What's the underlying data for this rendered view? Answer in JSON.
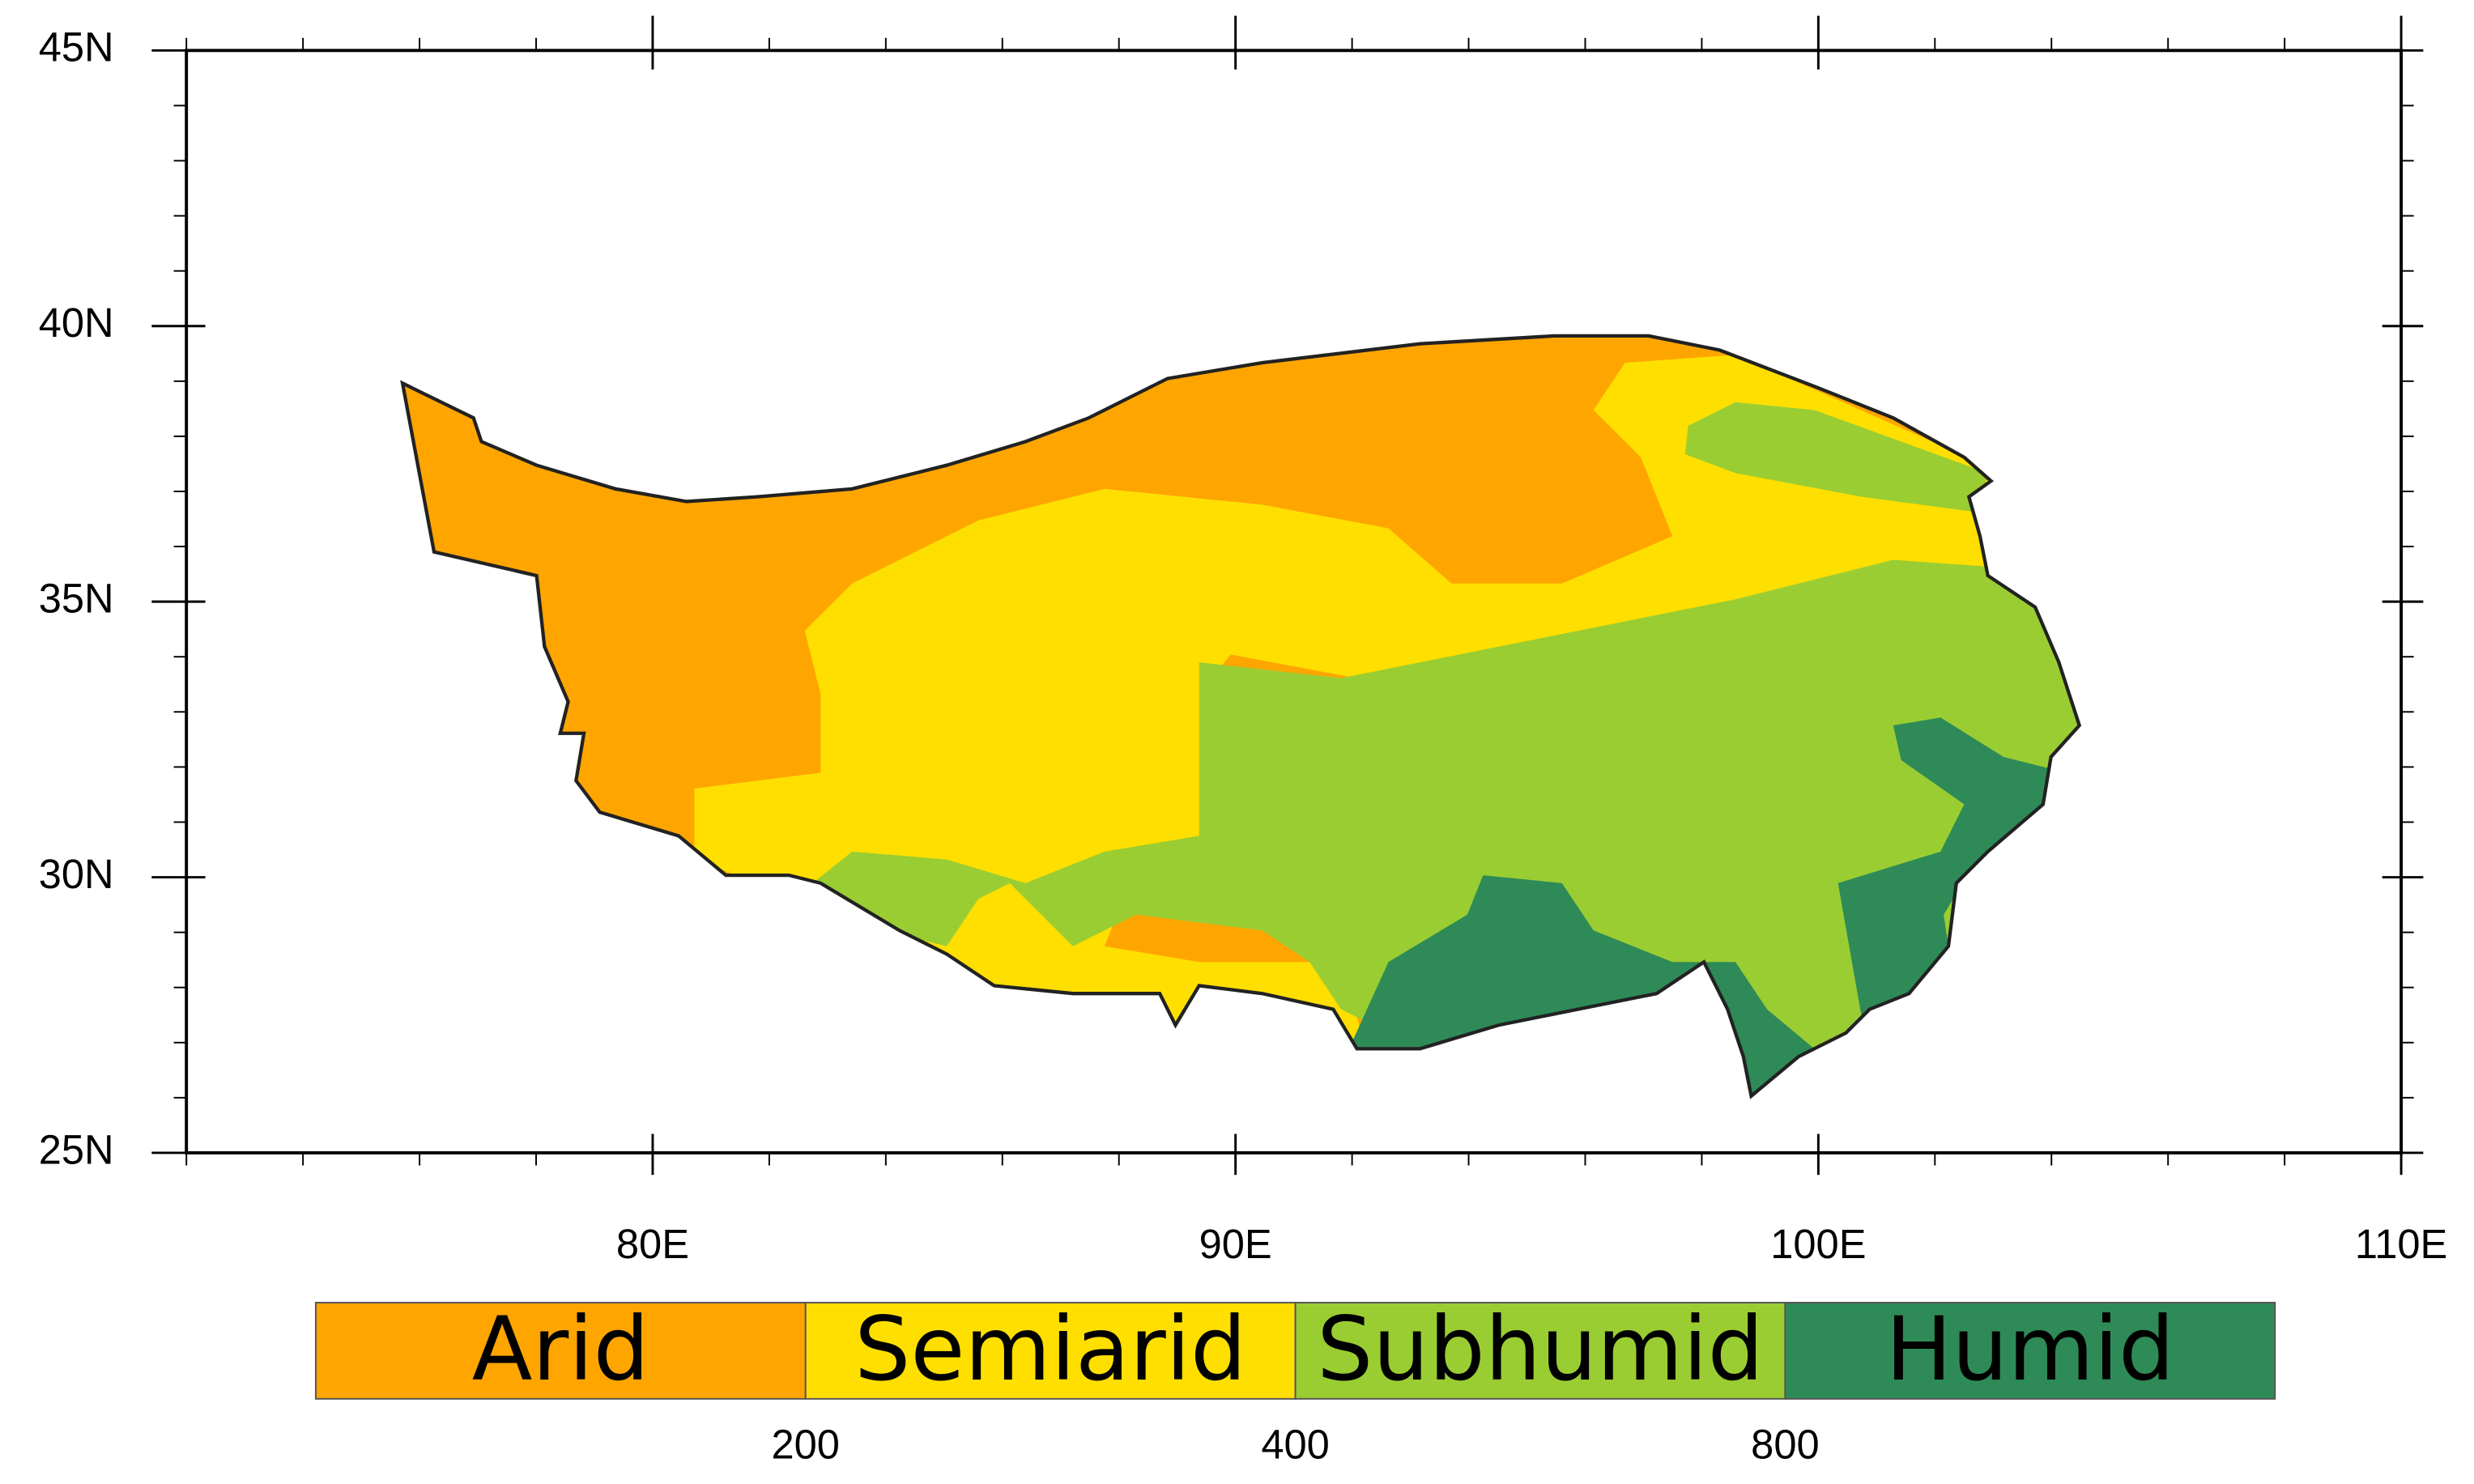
{
  "map": {
    "xlim": [
      72,
      110
    ],
    "ylim": [
      25,
      45
    ],
    "xticks": [
      {
        "value": 80,
        "label": "80E"
      },
      {
        "value": 90,
        "label": "90E"
      },
      {
        "value": 100,
        "label": "100E"
      },
      {
        "value": 110,
        "label": "110E"
      }
    ],
    "yticks": [
      {
        "value": 25,
        "label": "25N"
      },
      {
        "value": 30,
        "label": "30N"
      },
      {
        "value": 35,
        "label": "35N"
      },
      {
        "value": 40,
        "label": "40N"
      },
      {
        "value": 45,
        "label": "45N"
      }
    ],
    "legend": {
      "categories": [
        {
          "name": "Arid",
          "color": "#ffa500"
        },
        {
          "name": "Semiarid",
          "color": "#ffdf00"
        },
        {
          "name": "Subhumid",
          "color": "#9acd32"
        },
        {
          "name": "Humid",
          "color": "#2e8b57"
        }
      ],
      "boundaries": [
        200,
        400,
        800
      ]
    }
  }
}
